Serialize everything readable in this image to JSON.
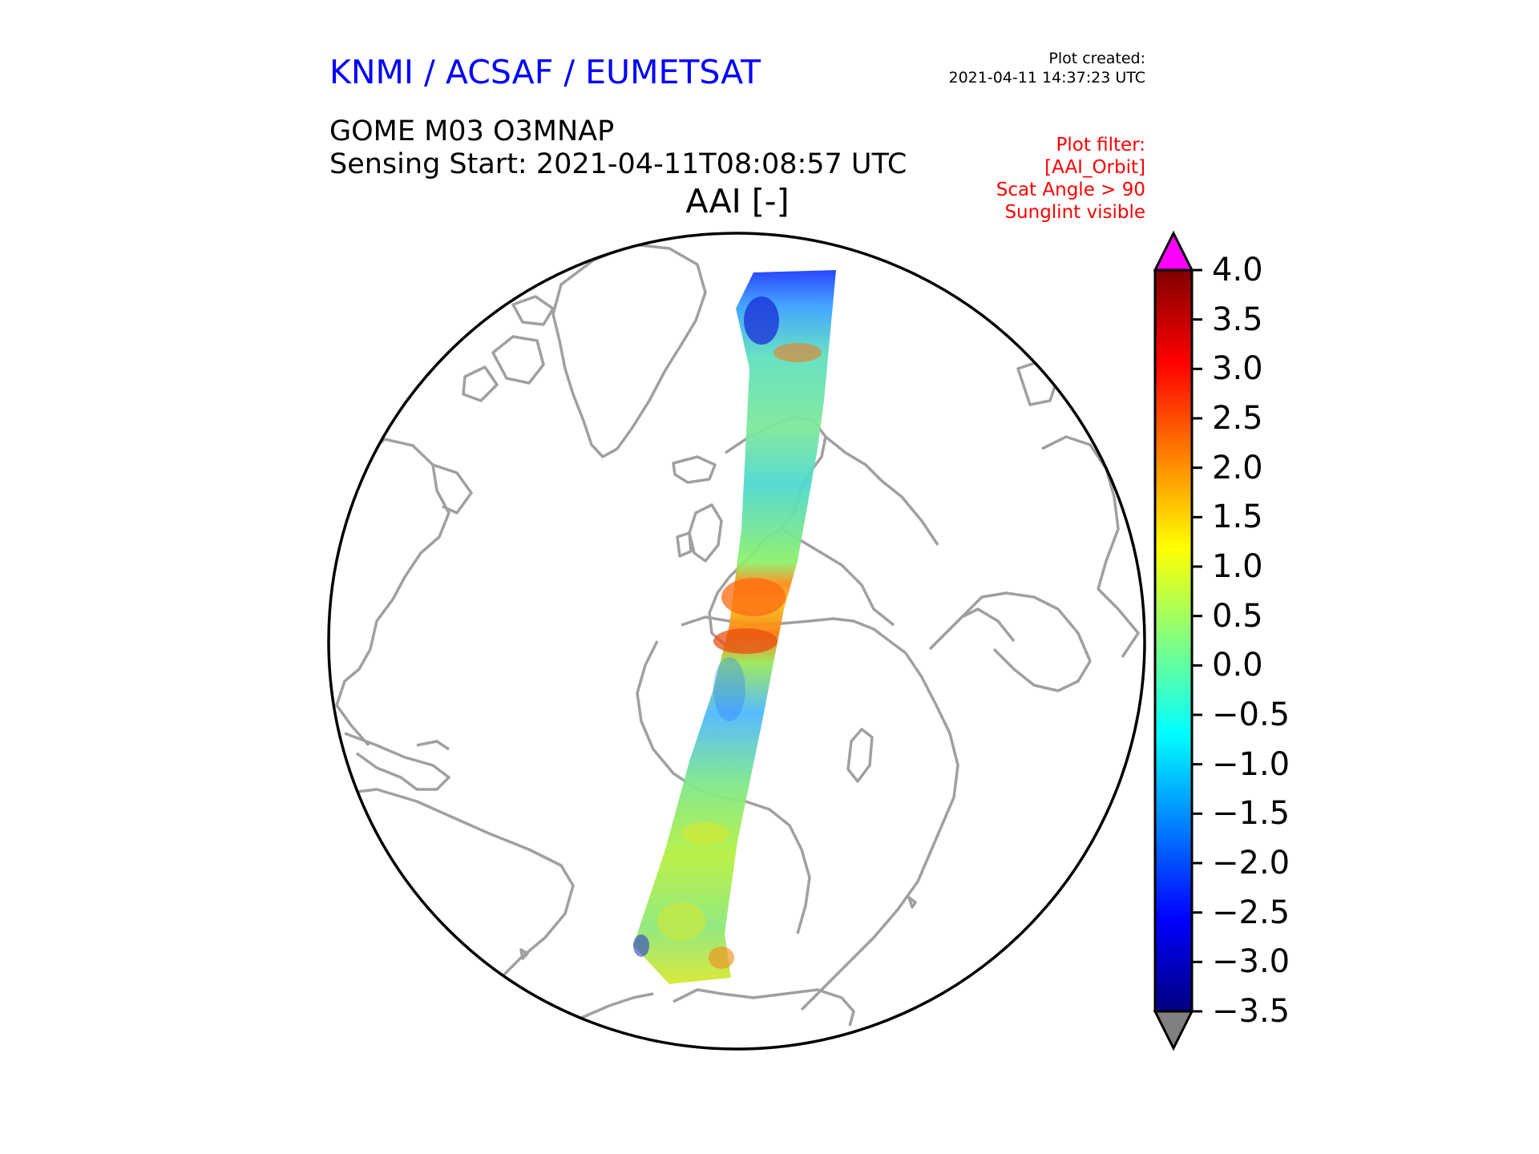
{
  "header": {
    "organisation": "KNMI / ACSAF / EUMETSAT",
    "plot_created_label": "Plot created:",
    "plot_created_value": "2021-04-11 14:37:23 UTC",
    "product": "GOME M03 O3MNAP",
    "sensing_start": "Sensing Start: 2021-04-11T08:08:57 UTC",
    "variable": "AAI [-]"
  },
  "plot_filter": {
    "lines": [
      "Plot filter:",
      "[AAI_Orbit]",
      "Scat Angle > 90",
      "Sunglint visible"
    ]
  },
  "colors": {
    "header_blue": "#0000ff",
    "filter_red": "#ff0000",
    "coastline": "#a0a0a0",
    "over_color": "#ff00ff",
    "under_color": "#808080"
  },
  "colorbar": {
    "min": -3.5,
    "max": 4.0,
    "colormap": "jet",
    "extend": "both",
    "tick_labels": [
      "4.0",
      "3.5",
      "3.0",
      "2.5",
      "2.0",
      "1.5",
      "1.0",
      "0.5",
      "0.0",
      "−0.5",
      "−1.0",
      "−1.5",
      "−2.0",
      "−2.5",
      "−3.0",
      "−3.5"
    ]
  },
  "map": {
    "projection": "orthographic",
    "features": [
      "coastlines",
      "satellite-swath"
    ],
    "swath_description_values": {
      "typical": [
        -0.5,
        0.5
      ],
      "high_sahara": [
        2.0,
        3.0
      ],
      "low_north": [
        -2.5,
        -1.5
      ]
    }
  }
}
